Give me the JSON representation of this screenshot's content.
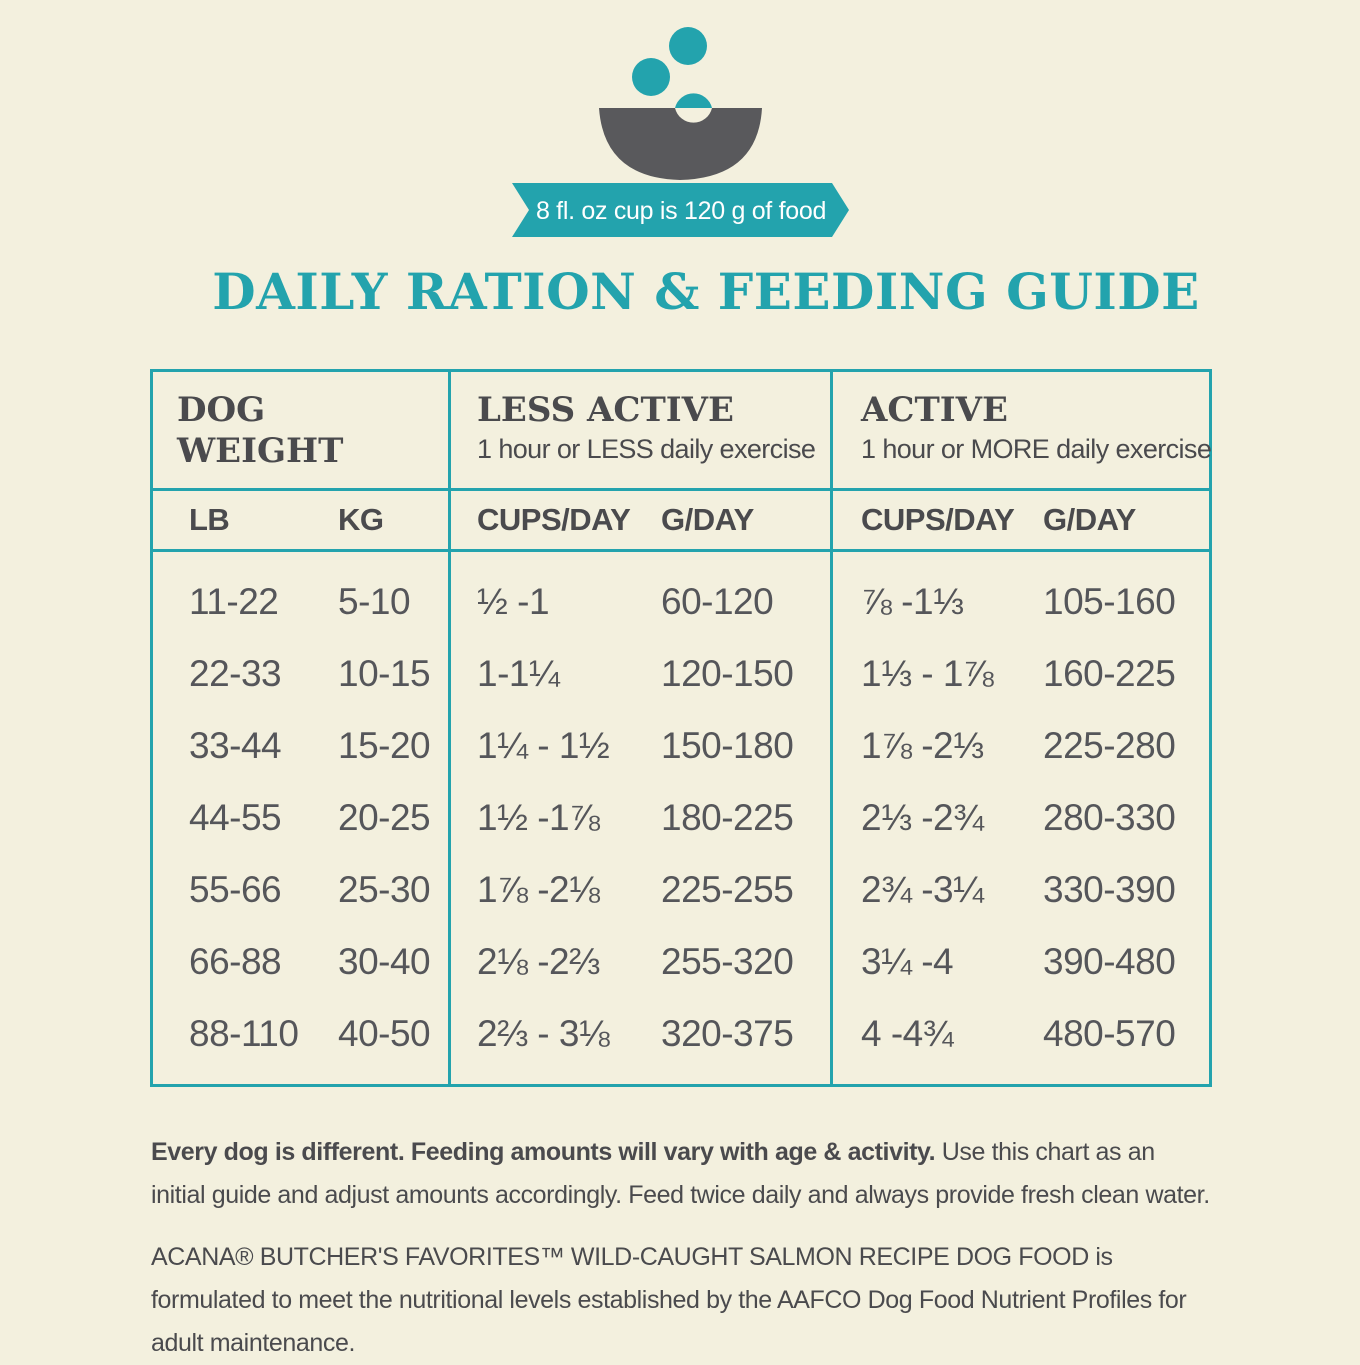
{
  "header": {
    "cup_note": "8 fl. oz cup is 120 g of food",
    "title": "DAILY RATION & FEEDING GUIDE",
    "icon": "food-bowl-icon",
    "colors": {
      "teal": "#23a3ad",
      "bowl": "#59595c",
      "background": "#f3f0de"
    }
  },
  "table": {
    "weight_title_line1": "DOG",
    "weight_title_line2": "WEIGHT",
    "less_active_title": "LESS ACTIVE",
    "less_active_sub": "1 hour or LESS daily exercise",
    "active_title": "ACTIVE",
    "active_sub": "1 hour or MORE daily exercise",
    "columns": [
      "LB",
      "KG",
      "CUPS/DAY",
      "G/DAY",
      "CUPS/DAY",
      "G/DAY"
    ],
    "rows": [
      [
        "11-22",
        "5-10",
        "½ -1",
        "60-120",
        "⅞ -1⅓",
        "105-160"
      ],
      [
        "22-33",
        "10-15",
        "1-1¼",
        "120-150",
        "1⅓ - 1⅞",
        "160-225"
      ],
      [
        "33-44",
        "15-20",
        "1¼ - 1½",
        "150-180",
        "1⅞ -2⅓",
        "225-280"
      ],
      [
        "44-55",
        "20-25",
        "1½ -1⅞",
        "180-225",
        "2⅓ -2¾",
        "280-330"
      ],
      [
        "55-66",
        "25-30",
        "1⅞ -2⅛",
        "225-255",
        "2¾ -3¼",
        "330-390"
      ],
      [
        "66-88",
        "30-40",
        "2⅛ -2⅔",
        "255-320",
        "3¼ -4",
        "390-480"
      ],
      [
        "88-110",
        "40-50",
        "2⅔ - 3⅛",
        "320-375",
        "4 -4¾",
        "480-570"
      ]
    ]
  },
  "notes": {
    "p1_bold": "Every dog is different. Feeding amounts will vary with age & activity.",
    "p1_rest": " Use this chart as an initial guide and adjust amounts accordingly. Feed twice daily and always provide fresh clean water.",
    "p2": "ACANA® BUTCHER'S FAVORITES™ WILD-CAUGHT SALMON RECIPE DOG FOOD is formulated to meet the nutritional levels established by the AAFCO Dog Food Nutrient Profiles for adult maintenance."
  }
}
